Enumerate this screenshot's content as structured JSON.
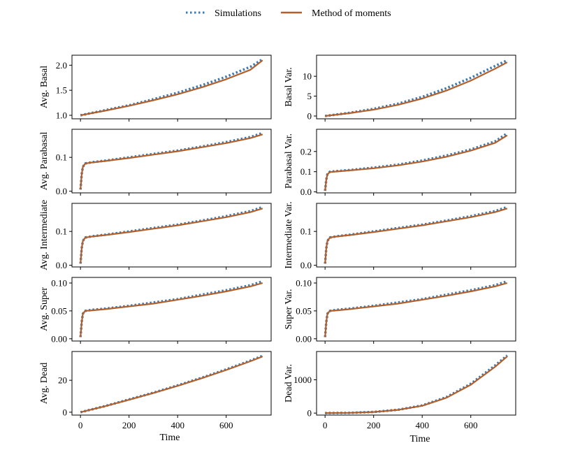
{
  "legend": {
    "placement": "top-center",
    "entries": [
      {
        "label": "Simulations",
        "style": "dotted",
        "color": "#3d7ab1"
      },
      {
        "label": "Method of moments",
        "style": "solid",
        "color": "#b45f2a"
      }
    ]
  },
  "colors": {
    "simulations": "#3d7ab1",
    "moments": "#b45f2a"
  },
  "x_axis": {
    "label": "Time",
    "ticks": [
      0,
      200,
      400,
      600
    ],
    "range": [
      -35,
      785
    ]
  },
  "chart_data": [
    {
      "type": "line",
      "ylabel": "Avg. Basal",
      "ylim": [
        0.93,
        2.2
      ],
      "yticks": [
        1.0,
        1.5,
        2.0
      ],
      "tick_labels": [
        "1.0",
        "1.5",
        "2.0"
      ],
      "x": [
        0,
        100,
        200,
        300,
        400,
        500,
        600,
        700,
        750
      ],
      "series": [
        {
          "name": "Simulations",
          "values": [
            1.0,
            1.1,
            1.2,
            1.32,
            1.45,
            1.6,
            1.77,
            1.97,
            2.12
          ]
        },
        {
          "name": "Method of moments",
          "values": [
            1.0,
            1.09,
            1.19,
            1.3,
            1.42,
            1.56,
            1.72,
            1.91,
            2.1
          ]
        }
      ]
    },
    {
      "type": "line",
      "ylabel": "Basal Var.",
      "ylim": [
        -0.7,
        15.3
      ],
      "yticks": [
        0,
        5,
        10
      ],
      "tick_labels": [
        "0",
        "5",
        "10"
      ],
      "x": [
        0,
        100,
        200,
        300,
        400,
        500,
        600,
        700,
        750
      ],
      "series": [
        {
          "name": "Simulations",
          "values": [
            0.0,
            0.8,
            1.8,
            3.1,
            4.8,
            7.0,
            9.6,
            12.6,
            14.0
          ]
        },
        {
          "name": "Method of moments",
          "values": [
            0.0,
            0.7,
            1.6,
            2.8,
            4.4,
            6.4,
            8.9,
            11.9,
            13.5
          ]
        }
      ]
    },
    {
      "type": "line",
      "ylabel": "Avg. Parabasal",
      "ylim": [
        -0.005,
        0.183
      ],
      "yticks": [
        0.0,
        0.1
      ],
      "tick_labels": [
        "0.0",
        "0.1"
      ],
      "x": [
        0,
        5,
        10,
        20,
        50,
        100,
        200,
        300,
        400,
        500,
        600,
        700,
        750
      ],
      "series": [
        {
          "name": "Simulations",
          "values": [
            0.005,
            0.05,
            0.072,
            0.082,
            0.086,
            0.09,
            0.1,
            0.11,
            0.12,
            0.132,
            0.145,
            0.16,
            0.172
          ]
        },
        {
          "name": "Method of moments",
          "values": [
            0.005,
            0.05,
            0.072,
            0.082,
            0.085,
            0.089,
            0.098,
            0.108,
            0.118,
            0.13,
            0.142,
            0.157,
            0.168
          ]
        }
      ]
    },
    {
      "type": "line",
      "ylabel": "Parabasal Var.",
      "ylim": [
        -0.005,
        0.31
      ],
      "yticks": [
        0.0,
        0.1,
        0.2
      ],
      "tick_labels": [
        "0.0",
        "0.1",
        "0.2"
      ],
      "x": [
        0,
        5,
        10,
        20,
        50,
        100,
        200,
        300,
        400,
        500,
        600,
        700,
        750
      ],
      "series": [
        {
          "name": "Simulations",
          "values": [
            0.005,
            0.06,
            0.088,
            0.1,
            0.103,
            0.108,
            0.12,
            0.135,
            0.155,
            0.18,
            0.21,
            0.25,
            0.29
          ]
        },
        {
          "name": "Method of moments",
          "values": [
            0.005,
            0.06,
            0.087,
            0.098,
            0.101,
            0.106,
            0.117,
            0.131,
            0.15,
            0.174,
            0.204,
            0.243,
            0.28
          ]
        }
      ]
    },
    {
      "type": "line",
      "ylabel": "Avg. Intermediate",
      "ylim": [
        -0.005,
        0.183
      ],
      "yticks": [
        0.0,
        0.1
      ],
      "tick_labels": [
        "0.0",
        "0.1"
      ],
      "x": [
        0,
        5,
        10,
        20,
        50,
        100,
        200,
        300,
        400,
        500,
        600,
        700,
        750
      ],
      "series": [
        {
          "name": "Simulations",
          "values": [
            0.005,
            0.05,
            0.072,
            0.082,
            0.086,
            0.09,
            0.1,
            0.11,
            0.12,
            0.132,
            0.145,
            0.16,
            0.172
          ]
        },
        {
          "name": "Method of moments",
          "values": [
            0.005,
            0.05,
            0.072,
            0.082,
            0.085,
            0.089,
            0.098,
            0.108,
            0.118,
            0.13,
            0.142,
            0.157,
            0.168
          ]
        }
      ]
    },
    {
      "type": "line",
      "ylabel": "Intermediate Var.",
      "ylim": [
        -0.005,
        0.183
      ],
      "yticks": [
        0.0,
        0.1
      ],
      "tick_labels": [
        "0.0",
        "0.1"
      ],
      "x": [
        0,
        5,
        10,
        20,
        50,
        100,
        200,
        300,
        400,
        500,
        600,
        700,
        750
      ],
      "series": [
        {
          "name": "Simulations",
          "values": [
            0.005,
            0.05,
            0.072,
            0.082,
            0.086,
            0.09,
            0.1,
            0.11,
            0.12,
            0.132,
            0.145,
            0.16,
            0.172
          ]
        },
        {
          "name": "Method of moments",
          "values": [
            0.005,
            0.05,
            0.072,
            0.082,
            0.085,
            0.089,
            0.098,
            0.108,
            0.118,
            0.13,
            0.142,
            0.157,
            0.168
          ]
        }
      ]
    },
    {
      "type": "line",
      "ylabel": "Avg. Super",
      "ylim": [
        -0.004,
        0.11
      ],
      "yticks": [
        0.0,
        0.05,
        0.1
      ],
      "tick_labels": [
        "0.00",
        "0.05",
        "0.10"
      ],
      "x": [
        0,
        5,
        10,
        20,
        50,
        100,
        200,
        300,
        400,
        500,
        600,
        700,
        750
      ],
      "series": [
        {
          "name": "Simulations",
          "values": [
            0.003,
            0.03,
            0.045,
            0.05,
            0.052,
            0.054,
            0.059,
            0.065,
            0.071,
            0.079,
            0.087,
            0.096,
            0.103
          ]
        },
        {
          "name": "Method of moments",
          "values": [
            0.003,
            0.03,
            0.045,
            0.05,
            0.051,
            0.053,
            0.058,
            0.063,
            0.07,
            0.077,
            0.085,
            0.094,
            0.1
          ]
        }
      ]
    },
    {
      "type": "line",
      "ylabel": "Super Var.",
      "ylim": [
        -0.004,
        0.11
      ],
      "yticks": [
        0.0,
        0.05,
        0.1
      ],
      "tick_labels": [
        "0.00",
        "0.05",
        "0.10"
      ],
      "x": [
        0,
        5,
        10,
        20,
        50,
        100,
        200,
        300,
        400,
        500,
        600,
        700,
        750
      ],
      "series": [
        {
          "name": "Simulations",
          "values": [
            0.003,
            0.03,
            0.045,
            0.05,
            0.052,
            0.054,
            0.059,
            0.065,
            0.071,
            0.079,
            0.087,
            0.096,
            0.103
          ]
        },
        {
          "name": "Method of moments",
          "values": [
            0.003,
            0.03,
            0.045,
            0.05,
            0.051,
            0.053,
            0.058,
            0.063,
            0.07,
            0.077,
            0.085,
            0.094,
            0.1
          ]
        }
      ]
    },
    {
      "type": "line",
      "ylabel": "Avg. Dead",
      "ylim": [
        -1.8,
        38
      ],
      "yticks": [
        0,
        20
      ],
      "tick_labels": [
        "0",
        "20"
      ],
      "x": [
        0,
        100,
        200,
        300,
        400,
        500,
        600,
        700,
        750
      ],
      "series": [
        {
          "name": "Simulations",
          "values": [
            0,
            3.8,
            8.0,
            12.2,
            16.8,
            21.6,
            26.8,
            32.3,
            35.3
          ]
        },
        {
          "name": "Method of moments",
          "values": [
            0,
            3.7,
            7.8,
            12.0,
            16.5,
            21.3,
            26.4,
            31.9,
            34.9
          ]
        }
      ]
    },
    {
      "type": "line",
      "ylabel": "Dead Var.",
      "ylim": [
        -60,
        1850
      ],
      "yticks": [
        0,
        1000
      ],
      "tick_labels": [
        "0",
        "1000"
      ],
      "x": [
        0,
        100,
        200,
        300,
        400,
        500,
        600,
        700,
        750
      ],
      "series": [
        {
          "name": "Simulations",
          "values": [
            0,
            8,
            35,
            100,
            230,
            480,
            880,
            1430,
            1730
          ]
        },
        {
          "name": "Method of moments",
          "values": [
            0,
            8,
            33,
            95,
            220,
            460,
            850,
            1390,
            1700
          ]
        }
      ]
    }
  ]
}
